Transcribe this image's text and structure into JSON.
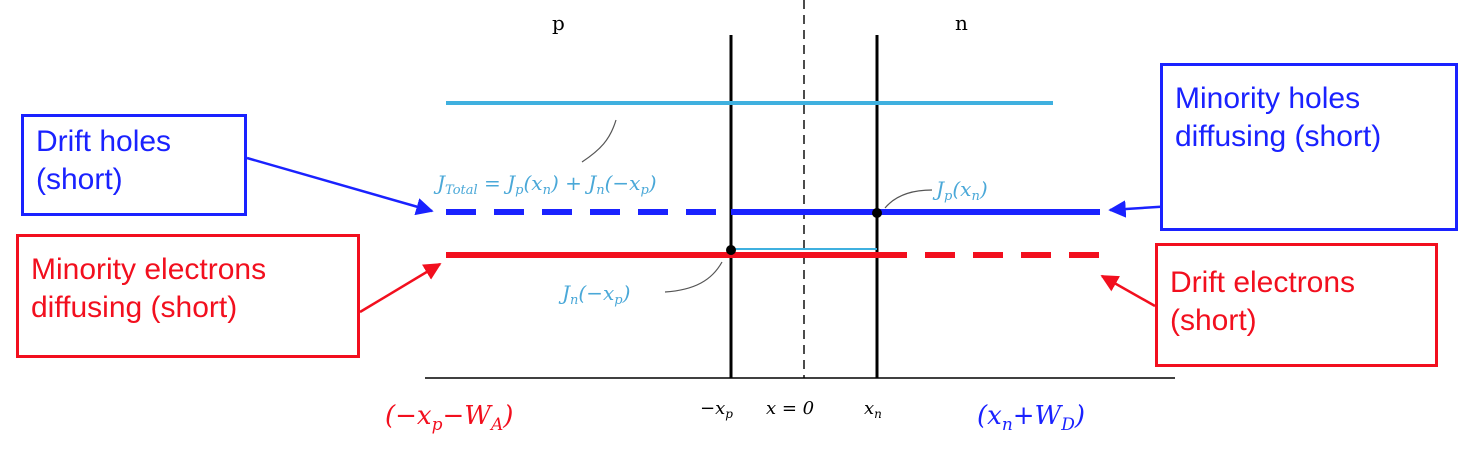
{
  "regions": {
    "p": "p",
    "n": "n"
  },
  "axis_ticks": {
    "neg_xp": "−x",
    "neg_xp_sub": "p",
    "zero": "x = 0",
    "xn": "x",
    "xn_sub": "n"
  },
  "current_labels": {
    "total": "J",
    "total_sub": "Total",
    "total_rhs": " = J",
    "total_rhs_sub1": "p",
    "total_rhs_mid": "(x",
    "total_rhs_sub2": "n",
    "total_rhs_mid2": ") + J",
    "total_rhs_sub3": "n",
    "total_rhs_end": "(−x",
    "total_rhs_sub4": "p",
    "total_rhs_close": ")",
    "jp": "J",
    "jp_sub": "p",
    "jp_arg": "(x",
    "jp_arg_sub": "n",
    "jp_close": ")",
    "jn": "J",
    "jn_sub": "n",
    "jn_arg": "(−x",
    "jn_arg_sub": "p",
    "jn_close": ")"
  },
  "boundary_labels": {
    "left": {
      "open": "(−x",
      "sub1": "p",
      "mid": "−W",
      "sub2": "A",
      "close": ")"
    },
    "right": {
      "open": "(x",
      "sub1": "n",
      "mid": "+W",
      "sub2": "D",
      "close": ")"
    }
  },
  "callouts": {
    "drift_holes": {
      "line1": "Drift holes",
      "line2": "(short)"
    },
    "minority_holes": {
      "line1": "Minority holes",
      "line2": "diffusing (short)"
    },
    "minority_electrons": {
      "line1": "Minority electrons",
      "line2": "diffusing (short)"
    },
    "drift_electrons": {
      "line1": "Drift electrons",
      "line2": "(short)"
    }
  },
  "colors": {
    "total_current": "#3fb0df",
    "hole_current": "#1a22ff",
    "electron_current": "#f20f1e",
    "axis": "#000000"
  }
}
